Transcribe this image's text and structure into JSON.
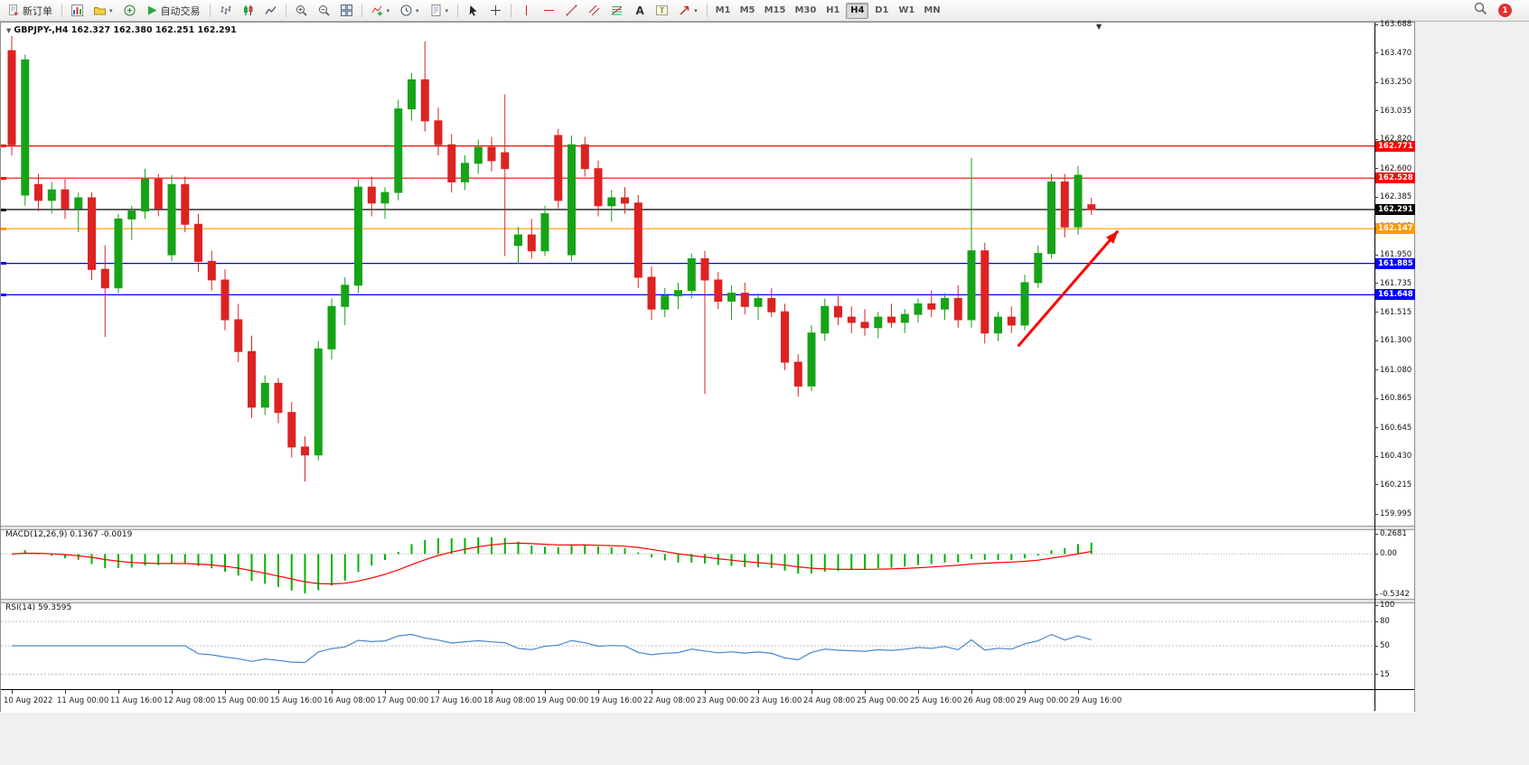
{
  "colors": {
    "bull": "#17a317",
    "bear": "#dd2222",
    "macd_hist": "#00b400",
    "macd_signal": "#ff0000",
    "rsi_line": "#4a86c8",
    "arrow": "#ff0000"
  },
  "toolbar": {
    "new_order_label": "新订单",
    "autotrading_label": "自动交易",
    "notification_badge": "1",
    "timeframes": [
      "M1",
      "M5",
      "M15",
      "M30",
      "H1",
      "H4",
      "D1",
      "W1",
      "MN"
    ],
    "active_timeframe": "H4",
    "groups": [
      [
        {
          "name": "new-order",
          "icon": "new-order-icon",
          "label": "新订单"
        }
      ],
      [
        {
          "name": "charts-toggle",
          "icon": "chart-window-icon"
        },
        {
          "name": "profiles",
          "icon": "profiles-icon",
          "caret": true
        },
        {
          "name": "data-window",
          "icon": "data-window-icon"
        },
        {
          "name": "autotrading",
          "icon": "autotrading-icon",
          "label": "自动交易"
        }
      ],
      [
        {
          "name": "chart-bars",
          "icon": "ohlc-bars-icon"
        },
        {
          "name": "chart-candles",
          "icon": "candlestick-icon"
        },
        {
          "name": "chart-line",
          "icon": "line-chart-icon"
        }
      ],
      [
        {
          "name": "zoom-in",
          "icon": "zoom-in-icon"
        },
        {
          "name": "zoom-out",
          "icon": "zoom-out-icon"
        },
        {
          "name": "tile-windows",
          "icon": "tile-windows-icon"
        }
      ],
      [
        {
          "name": "indicators",
          "icon": "indicators-icon",
          "caret": true
        },
        {
          "name": "periods",
          "icon": "clock-icon",
          "caret": true
        },
        {
          "name": "templates",
          "icon": "template-icon",
          "caret": true
        }
      ],
      [
        {
          "name": "cursor",
          "icon": "cursor-icon"
        },
        {
          "name": "crosshair",
          "icon": "crosshair-icon"
        }
      ],
      [
        {
          "name": "vertical-line",
          "icon": "vertical-line-icon"
        },
        {
          "name": "horizontal-line",
          "icon": "horizontal-line-icon"
        },
        {
          "name": "trendline",
          "icon": "trendline-icon"
        },
        {
          "name": "channel",
          "icon": "channel-icon"
        },
        {
          "name": "fibonacci",
          "icon": "fibonacci-icon"
        },
        {
          "name": "text",
          "icon": "text-icon"
        },
        {
          "name": "text-label",
          "icon": "text-label-icon"
        },
        {
          "name": "arrows",
          "icon": "arrow-tool-icon",
          "caret": true
        }
      ]
    ]
  },
  "chart": {
    "symbol_label": "GBPJPY-,H4 162.327 162.380 162.251 162.291",
    "macd_label": "MACD(12,26,9) 0.1367 -0.0019",
    "rsi_label": "RSI(14) 59.3595"
  },
  "chart_data": {
    "type": "candlestick",
    "title": "GBPJPY-,H4",
    "symbol": "GBPJPY-",
    "timeframe": "H4",
    "last_ohlc": {
      "open": 162.327,
      "high": 162.38,
      "low": 162.251,
      "close": 162.291
    },
    "price_axis": {
      "min": 159.995,
      "max": 163.688,
      "ticks": [
        "163.688",
        "163.470",
        "163.250",
        "163.035",
        "162.820",
        "162.600",
        "162.385",
        "162.165",
        "161.950",
        "161.735",
        "161.515",
        "161.300",
        "161.080",
        "160.865",
        "160.645",
        "160.430",
        "160.215",
        "159.995"
      ]
    },
    "bars_per_label": 4,
    "time_labels": [
      "10 Aug 2022",
      "11 Aug 00:00",
      "11 Aug 16:00",
      "12 Aug 08:00",
      "15 Aug 00:00",
      "15 Aug 16:00",
      "16 Aug 08:00",
      "17 Aug 00:00",
      "17 Aug 16:00",
      "18 Aug 08:00",
      "19 Aug 00:00",
      "19 Aug 16:00",
      "22 Aug 08:00",
      "23 Aug 00:00",
      "23 Aug 16:00",
      "24 Aug 08:00",
      "25 Aug 00:00",
      "25 Aug 16:00",
      "26 Aug 08:00",
      "29 Aug 00:00",
      "29 Aug 16:00"
    ],
    "candles_ohlc": [
      [
        163.49,
        163.6,
        162.7,
        162.78
      ],
      [
        162.4,
        163.46,
        162.32,
        163.42
      ],
      [
        162.48,
        162.56,
        162.28,
        162.36
      ],
      [
        162.36,
        162.5,
        162.26,
        162.44
      ],
      [
        162.44,
        162.52,
        162.22,
        162.3
      ],
      [
        162.3,
        162.42,
        162.12,
        162.38
      ],
      [
        162.38,
        162.42,
        161.76,
        161.84
      ],
      [
        161.84,
        162.02,
        161.33,
        161.7
      ],
      [
        161.7,
        162.26,
        161.66,
        162.22
      ],
      [
        162.22,
        162.32,
        162.06,
        162.28
      ],
      [
        162.28,
        162.6,
        162.22,
        162.52
      ],
      [
        162.52,
        162.56,
        162.24,
        162.3
      ],
      [
        161.95,
        162.55,
        161.9,
        162.48
      ],
      [
        162.48,
        162.54,
        162.12,
        162.18
      ],
      [
        162.18,
        162.26,
        161.82,
        161.9
      ],
      [
        161.9,
        161.98,
        161.68,
        161.76
      ],
      [
        161.76,
        161.84,
        161.38,
        161.46
      ],
      [
        161.46,
        161.58,
        161.14,
        161.22
      ],
      [
        161.22,
        161.34,
        160.72,
        160.8
      ],
      [
        160.8,
        161.04,
        160.74,
        160.98
      ],
      [
        160.98,
        161.02,
        160.68,
        160.76
      ],
      [
        160.76,
        160.84,
        160.42,
        160.5
      ],
      [
        160.5,
        160.58,
        160.24,
        160.44
      ],
      [
        160.44,
        161.3,
        160.4,
        161.24
      ],
      [
        161.24,
        161.62,
        161.16,
        161.56
      ],
      [
        161.56,
        161.78,
        161.42,
        161.72
      ],
      [
        161.72,
        162.52,
        161.66,
        162.46
      ],
      [
        162.46,
        162.54,
        162.24,
        162.34
      ],
      [
        162.34,
        162.46,
        162.22,
        162.42
      ],
      [
        162.42,
        163.12,
        162.36,
        163.05
      ],
      [
        163.05,
        163.32,
        162.96,
        163.27
      ],
      [
        163.27,
        163.56,
        162.88,
        162.96
      ],
      [
        162.96,
        163.06,
        162.7,
        162.78
      ],
      [
        162.78,
        162.86,
        162.42,
        162.5
      ],
      [
        162.5,
        162.7,
        162.44,
        162.64
      ],
      [
        162.64,
        162.82,
        162.56,
        162.76
      ],
      [
        162.76,
        162.84,
        162.58,
        162.66
      ],
      [
        162.72,
        163.16,
        161.94,
        162.6
      ],
      [
        162.02,
        162.16,
        161.88,
        162.1
      ],
      [
        162.1,
        162.22,
        161.92,
        161.98
      ],
      [
        161.98,
        162.32,
        161.94,
        162.26
      ],
      [
        162.85,
        162.9,
        162.3,
        162.36
      ],
      [
        161.95,
        162.85,
        161.9,
        162.78
      ],
      [
        162.78,
        162.84,
        162.54,
        162.6
      ],
      [
        162.6,
        162.66,
        162.24,
        162.32
      ],
      [
        162.32,
        162.44,
        162.2,
        162.38
      ],
      [
        162.38,
        162.46,
        162.26,
        162.34
      ],
      [
        162.34,
        162.4,
        161.7,
        161.78
      ],
      [
        161.78,
        161.86,
        161.46,
        161.54
      ],
      [
        161.54,
        161.7,
        161.48,
        161.64
      ],
      [
        161.64,
        161.74,
        161.54,
        161.68
      ],
      [
        161.68,
        161.96,
        161.62,
        161.92
      ],
      [
        161.92,
        161.98,
        160.9,
        161.76
      ],
      [
        161.76,
        161.82,
        161.54,
        161.6
      ],
      [
        161.6,
        161.72,
        161.46,
        161.66
      ],
      [
        161.66,
        161.74,
        161.5,
        161.56
      ],
      [
        161.56,
        161.66,
        161.46,
        161.62
      ],
      [
        161.62,
        161.7,
        161.48,
        161.52
      ],
      [
        161.52,
        161.58,
        161.08,
        161.14
      ],
      [
        161.14,
        161.2,
        160.88,
        160.96
      ],
      [
        160.96,
        161.42,
        160.92,
        161.36
      ],
      [
        161.36,
        161.62,
        161.3,
        161.56
      ],
      [
        161.56,
        161.64,
        161.42,
        161.48
      ],
      [
        161.48,
        161.56,
        161.36,
        161.44
      ],
      [
        161.44,
        161.54,
        161.34,
        161.4
      ],
      [
        161.4,
        161.52,
        161.32,
        161.48
      ],
      [
        161.48,
        161.58,
        161.4,
        161.44
      ],
      [
        161.44,
        161.54,
        161.36,
        161.5
      ],
      [
        161.5,
        161.62,
        161.44,
        161.58
      ],
      [
        161.58,
        161.68,
        161.48,
        161.54
      ],
      [
        161.54,
        161.66,
        161.46,
        161.62
      ],
      [
        161.62,
        161.72,
        161.4,
        161.46
      ],
      [
        161.46,
        162.68,
        161.4,
        161.98
      ],
      [
        161.98,
        162.04,
        161.28,
        161.36
      ],
      [
        161.36,
        161.52,
        161.3,
        161.48
      ],
      [
        161.48,
        161.56,
        161.36,
        161.42
      ],
      [
        161.42,
        161.8,
        161.38,
        161.74
      ],
      [
        161.74,
        162.02,
        161.7,
        161.96
      ],
      [
        161.96,
        162.56,
        161.92,
        162.5
      ],
      [
        162.5,
        162.56,
        162.08,
        162.16
      ],
      [
        162.16,
        162.62,
        162.1,
        162.55
      ],
      [
        162.327,
        162.38,
        162.251,
        162.291
      ]
    ],
    "horizontal_lines": [
      {
        "price": 162.771,
        "color": "#ff0000",
        "label": "162.771"
      },
      {
        "price": 162.528,
        "color": "#ff0000",
        "label": "162.528"
      },
      {
        "price": 162.291,
        "color": "#000000",
        "label": "162.291"
      },
      {
        "price": 162.147,
        "color": "#ff9900",
        "label": "162.147"
      },
      {
        "price": 161.885,
        "color": "#0000ff",
        "label": "161.885"
      },
      {
        "price": 161.648,
        "color": "#0000ff",
        "label": "161.648"
      }
    ],
    "trend_arrow": {
      "from": {
        "bar": 75.5,
        "price": 161.26
      },
      "to": {
        "bar": 83,
        "price": 162.13
      }
    },
    "indicators": {
      "macd": {
        "label": "MACD(12,26,9) 0.1367 -0.0019",
        "params": [
          12,
          26,
          9
        ],
        "values_display": {
          "macd": 0.1367,
          "signal": -0.0019
        },
        "axis_ticks": [
          "0.2681",
          "0.00",
          "-0.5342"
        ],
        "max": 0.2681,
        "min": -0.5342
      },
      "rsi": {
        "label": "RSI(14) 59.3595",
        "period": 14,
        "value_display": 59.3595,
        "axis_ticks": [
          "100",
          "80",
          "50",
          "15"
        ],
        "levels": [
          80,
          50,
          15
        ],
        "max": 100,
        "min": 0
      }
    }
  }
}
